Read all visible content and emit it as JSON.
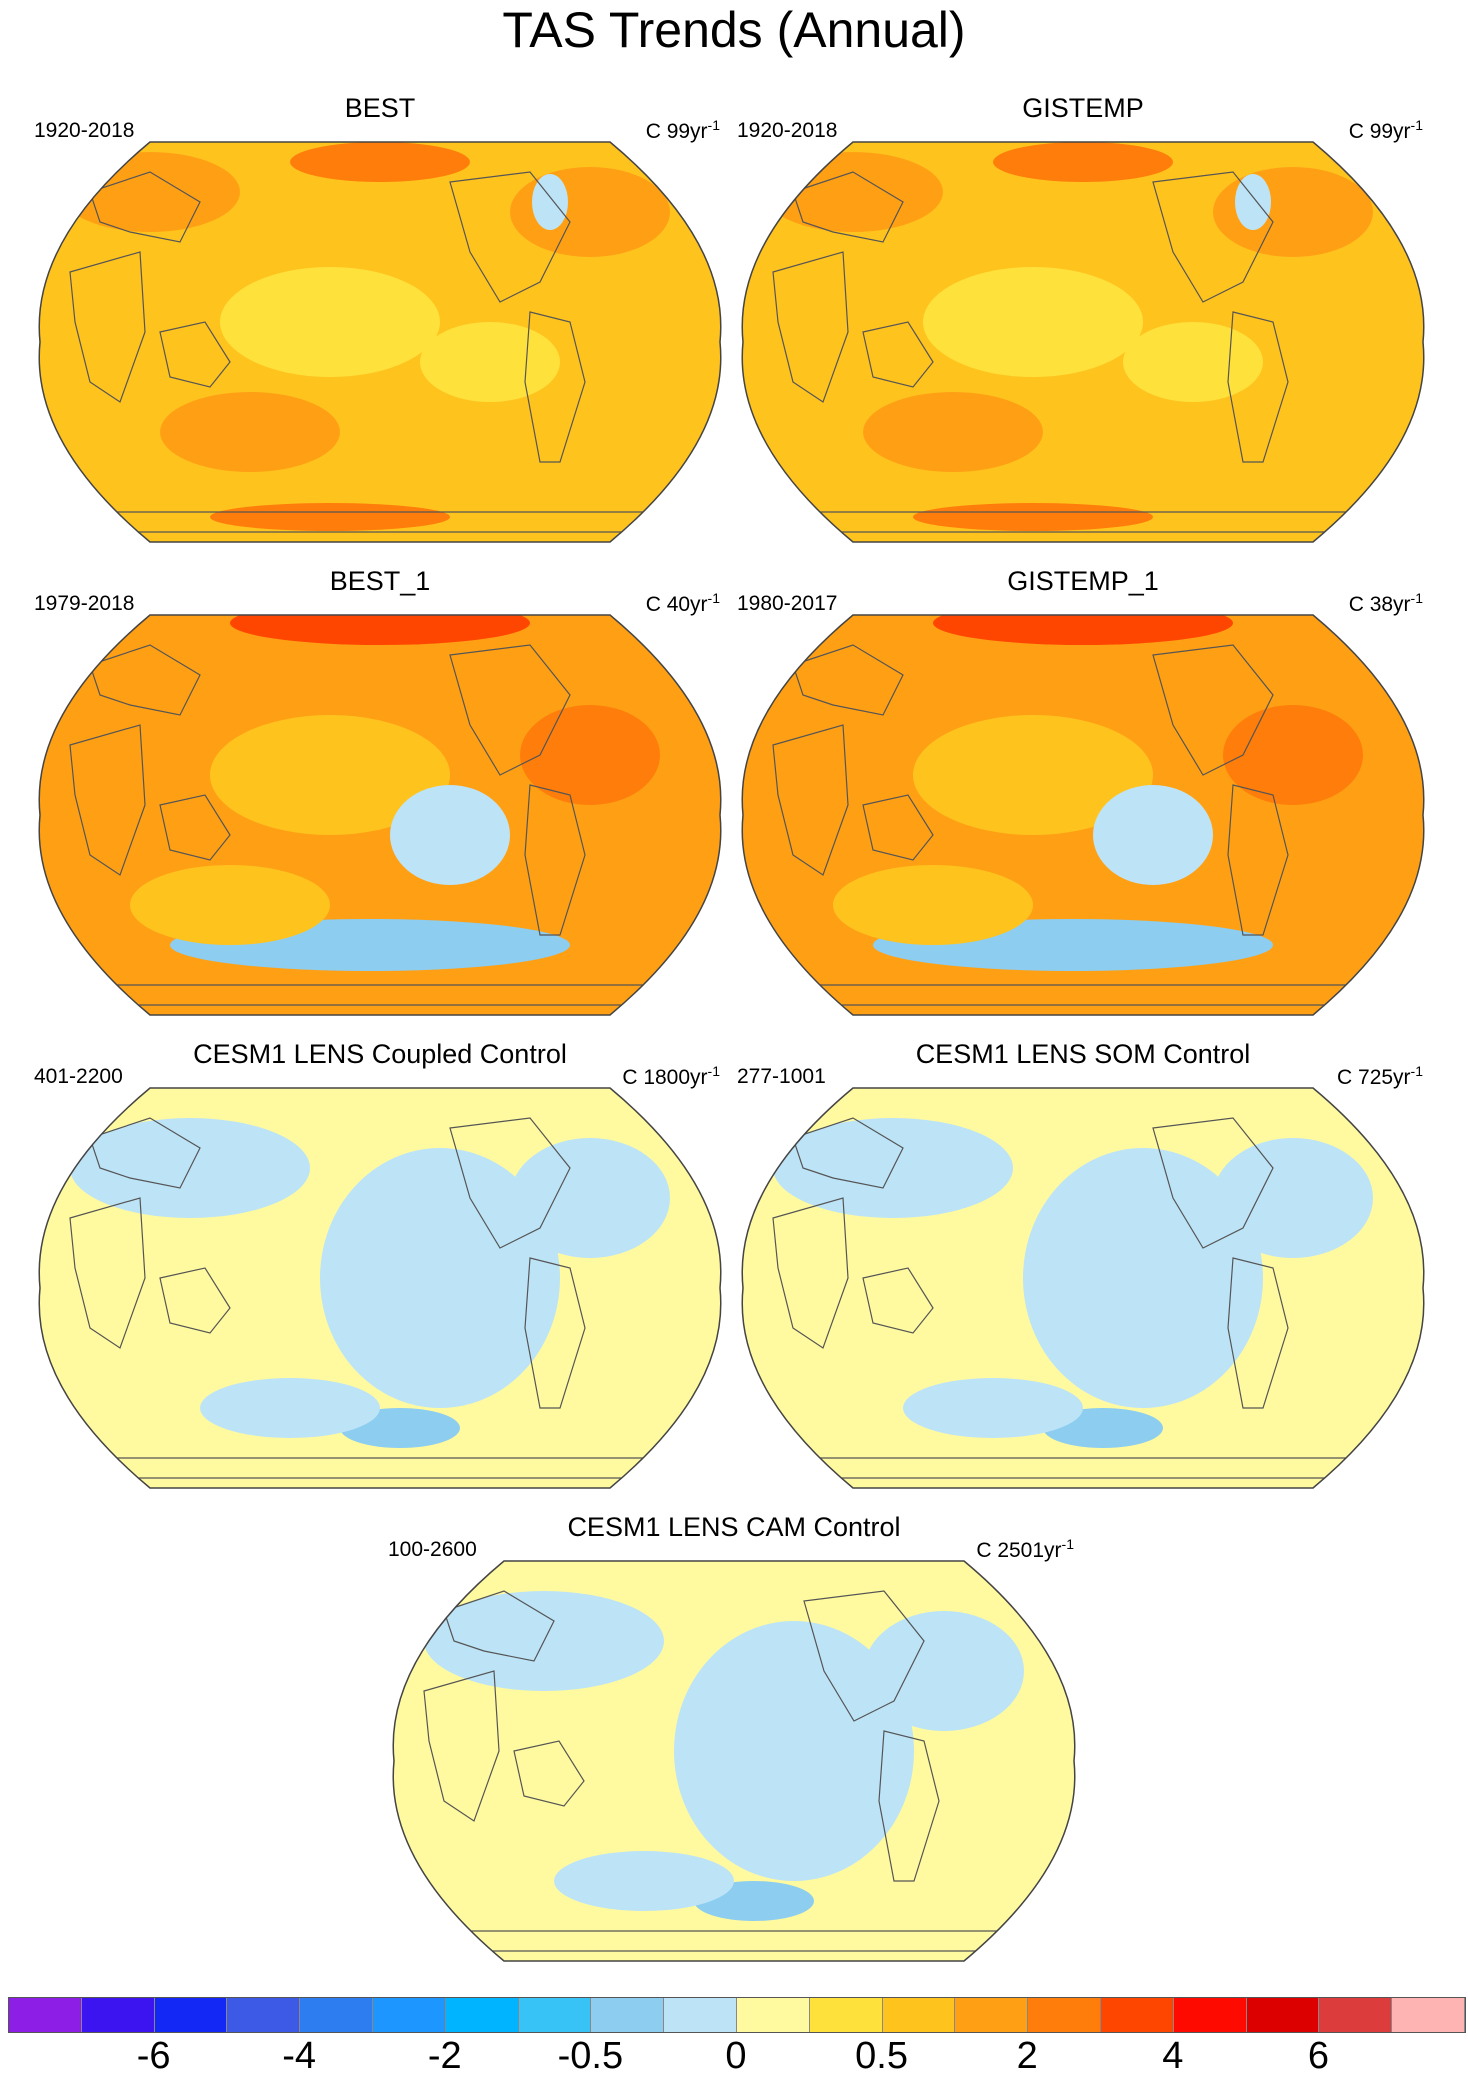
{
  "title": "TAS Trends (Annual)",
  "panels": [
    {
      "id": "best",
      "title": "BEST",
      "period": "1920-2018",
      "dof_prefix": "C 99yr",
      "dof_sup": "-1",
      "theme": "warm"
    },
    {
      "id": "gistemp",
      "title": "GISTEMP",
      "period": "1920-2018",
      "dof_prefix": "C 99yr",
      "dof_sup": "-1",
      "theme": "warm"
    },
    {
      "id": "best1",
      "title": "BEST_1",
      "period": "1979-2018",
      "dof_prefix": "C 40yr",
      "dof_sup": "-1",
      "theme": "hot"
    },
    {
      "id": "gistemp1",
      "title": "GISTEMP_1",
      "period": "1980-2017",
      "dof_prefix": "C 38yr",
      "dof_sup": "-1",
      "theme": "hot"
    },
    {
      "id": "coupled",
      "title": "CESM1 LENS Coupled Control",
      "period": "401-2200",
      "dof_prefix": "C 1800yr",
      "dof_sup": "-1",
      "theme": "neutral"
    },
    {
      "id": "som",
      "title": "CESM1 LENS SOM Control",
      "period": "277-1001",
      "dof_prefix": "C 725yr",
      "dof_sup": "-1",
      "theme": "neutral"
    },
    {
      "id": "cam",
      "title": "CESM1 LENS CAM Control",
      "period": "100-2600",
      "dof_prefix": "C 2501yr",
      "dof_sup": "-1",
      "theme": "neutral"
    }
  ],
  "colorbar": {
    "colors": [
      "#8c1ee6",
      "#3c14f0",
      "#1428f5",
      "#3c5ae6",
      "#2d7df0",
      "#1e96ff",
      "#00b4ff",
      "#37c3f5",
      "#8ccdf0",
      "#bde3f7",
      "#fffaa0",
      "#ffe13c",
      "#ffc31e",
      "#ffa014",
      "#ff7d0a",
      "#ff4600",
      "#ff0a00",
      "#dc0000",
      "#dc3c3c",
      "#ffb4b4"
    ],
    "labels": [
      "-6",
      "-4",
      "-2",
      "-0.5",
      "0",
      "0.5",
      "2",
      "4",
      "6"
    ],
    "label_positions": [
      2,
      4,
      6,
      8,
      10,
      12,
      14,
      16,
      18
    ]
  }
}
